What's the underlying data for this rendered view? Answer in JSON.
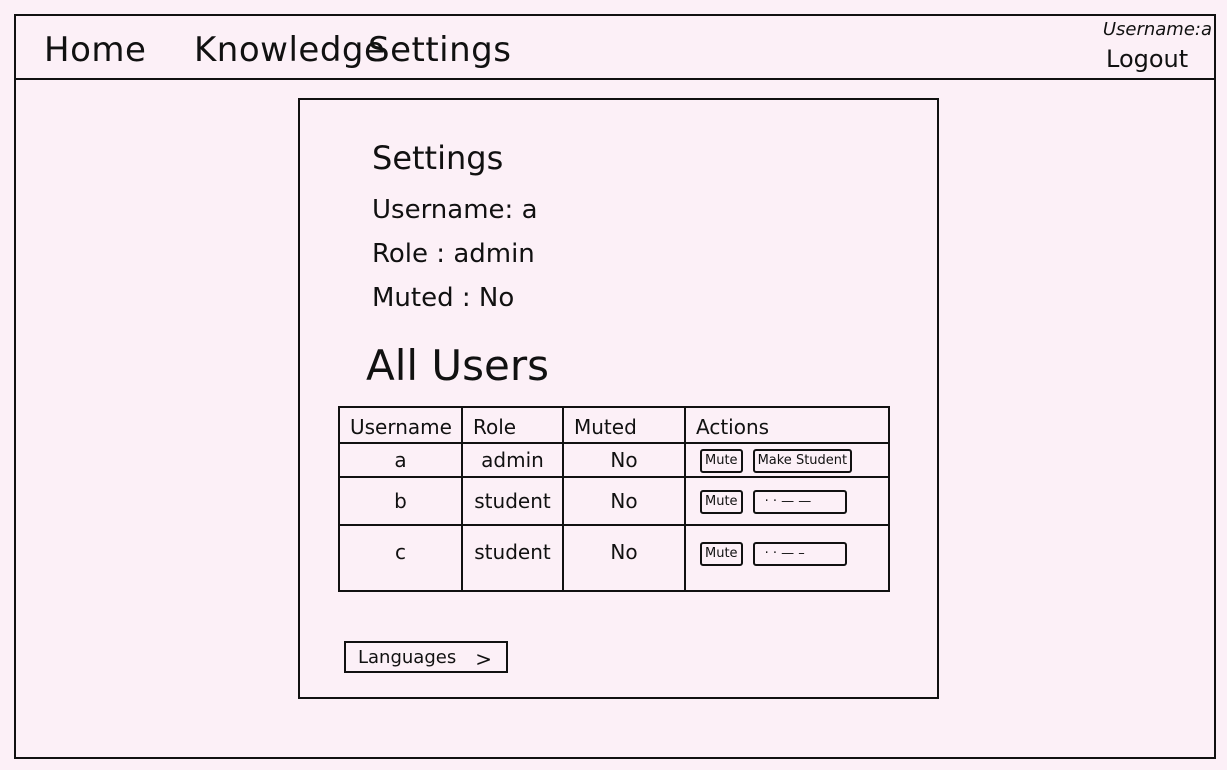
{
  "nav": {
    "home": "Home",
    "knowledge": "Knowledge",
    "settings": "Settings",
    "user_info": "Username:a",
    "logout": "Logout"
  },
  "settings": {
    "title": "Settings",
    "username_line": "Username: a",
    "role_line": "Role : admin",
    "muted_line": "Muted : No"
  },
  "users": {
    "title": "All Users",
    "headers": [
      "Username",
      "Role",
      "Muted",
      "Actions"
    ],
    "rows": [
      {
        "username": "a",
        "role": "admin",
        "muted": "No",
        "mute_label": "Mute",
        "action_label": "Make Student"
      },
      {
        "username": "b",
        "role": "student",
        "muted": "No",
        "mute_label": "Mute",
        "action_label": "· · — —"
      },
      {
        "username": "c",
        "role": "student",
        "muted": "No",
        "mute_label": "Mute",
        "action_label": "· · — –"
      }
    ]
  },
  "languages": {
    "label": "Languages",
    "chevron": ">"
  }
}
